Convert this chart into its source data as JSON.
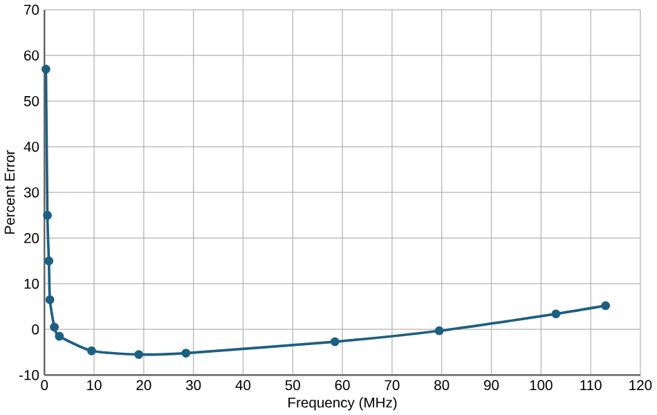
{
  "chart_data": {
    "type": "line",
    "xlabel": "Frequency (MHz)",
    "ylabel": "Percent Error",
    "x": [
      0.3,
      0.6,
      0.9,
      1.1,
      2,
      3,
      9.5,
      19,
      28.5,
      58.5,
      79.5,
      103,
      113
    ],
    "series": [
      {
        "color": "#1d5f82",
        "values": [
          57,
          25,
          15,
          6.5,
          0.5,
          -1.5,
          -4.7,
          -5.5,
          -5.2,
          -2.7,
          -0.3,
          3.4,
          5.2
        ]
      }
    ],
    "xlim": [
      0,
      120
    ],
    "ylim": [
      -10,
      70
    ],
    "xticks": [
      0,
      10,
      20,
      30,
      40,
      50,
      60,
      70,
      80,
      90,
      100,
      110,
      120
    ],
    "yticks": [
      -10,
      0,
      10,
      20,
      30,
      40,
      50,
      60,
      70
    ],
    "grid": true,
    "marker": "circle",
    "line_style": "solid"
  }
}
